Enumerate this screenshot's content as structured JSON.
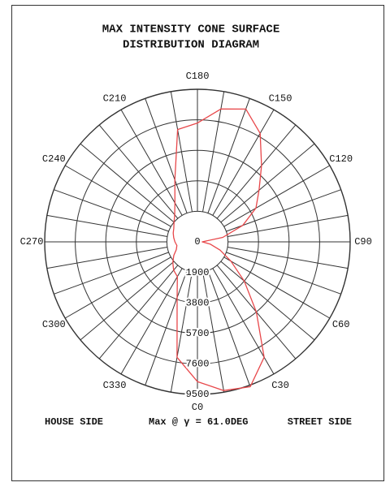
{
  "chart_data": {
    "type": "polar",
    "title": [
      "MAX INTENSITY CONE SURFACE",
      "DISTRIBUTION DIAGRAM"
    ],
    "rlim": [
      0,
      9500
    ],
    "rticks": [
      0,
      1900,
      3800,
      5700,
      7600,
      9500
    ],
    "angle_ticks": [
      {
        "value": 0,
        "label": "C0"
      },
      {
        "value": 30,
        "label": "C30"
      },
      {
        "value": 60,
        "label": "C60"
      },
      {
        "value": 90,
        "label": "C90"
      },
      {
        "value": 120,
        "label": "C120"
      },
      {
        "value": 150,
        "label": "C150"
      },
      {
        "value": 180,
        "label": "C180"
      },
      {
        "value": 210,
        "label": "C210"
      },
      {
        "value": 240,
        "label": "C240"
      },
      {
        "value": 270,
        "label": "C270"
      },
      {
        "value": 300,
        "label": "C300"
      },
      {
        "value": 330,
        "label": "C330"
      }
    ],
    "angles": [
      0,
      10,
      20,
      30,
      40,
      50,
      60,
      70,
      80,
      90,
      100,
      110,
      120,
      130,
      140,
      150,
      160,
      170,
      180,
      190,
      200,
      210,
      220,
      230,
      240,
      250,
      260,
      270,
      280,
      290,
      300,
      310,
      320,
      330,
      340,
      350
    ],
    "series": [
      {
        "color": "#e8474a",
        "values": [
          8700,
          9400,
          9600,
          8300,
          5700,
          3800,
          2400,
          1500,
          800,
          300,
          1600,
          3000,
          4200,
          5000,
          6200,
          7800,
          8800,
          8400,
          7400,
          7100,
          4100,
          2800,
          2200,
          1900,
          1700,
          1600,
          1500,
          1400,
          1300,
          1400,
          1700,
          2000,
          2300,
          2500,
          3700,
          7300
        ]
      }
    ],
    "annotations": [
      "HOUSE SIDE",
      "Max @ γ = 61.0DEG",
      "STREET SIDE"
    ]
  }
}
